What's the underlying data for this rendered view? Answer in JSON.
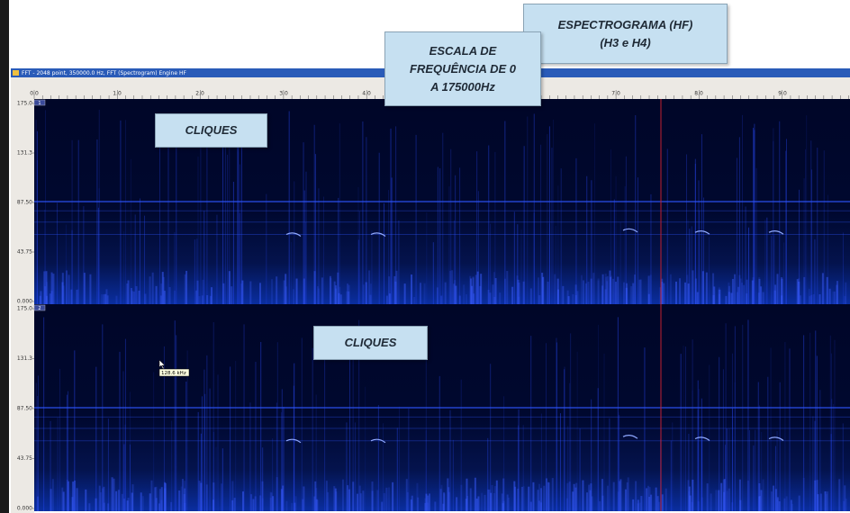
{
  "window": {
    "title": "FFT - 2048 point, 350000.0 Hz, FFT (Spectrogram) Engine HF"
  },
  "time_axis": {
    "labels": [
      "0.0",
      "1.0",
      "2.0",
      "3.0",
      "4.0",
      "7.0",
      "8.0",
      "9.0"
    ]
  },
  "channels": [
    {
      "label": "1",
      "freq_labels": [
        "175.0",
        "131.3",
        "87.50",
        "43.75",
        "0.000"
      ]
    },
    {
      "label": "2",
      "freq_labels": [
        "175.0",
        "131.3",
        "87.50",
        "43.75",
        "0.000"
      ]
    }
  ],
  "cursor_tooltip": "128.6 kHz",
  "annotations": [
    {
      "lines": [
        "ESPECTROGRAMA (HF)",
        "(H3 e H4)"
      ]
    },
    {
      "lines": [
        "ESCALA DE",
        "FREQUÊNCIA DE 0",
        "A 175000Hz"
      ]
    },
    {
      "lines": [
        "CLIQUES"
      ]
    },
    {
      "lines": [
        "CLIQUES"
      ]
    }
  ]
}
